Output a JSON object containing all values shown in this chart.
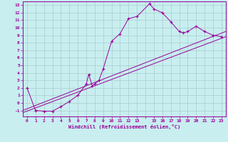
{
  "title": "",
  "xlabel": "Windchill (Refroidissement éolien,°C)",
  "ylabel": "",
  "bg_color": "#c8eef0",
  "line_color": "#990099",
  "grid_color": "#aacccc",
  "xlim": [
    -0.5,
    23.5
  ],
  "ylim": [
    -1.8,
    13.5
  ],
  "main_xy": [
    [
      0,
      2.0
    ],
    [
      1,
      -1.0
    ],
    [
      2,
      -1.1
    ],
    [
      3,
      -1.1
    ],
    [
      4,
      -0.5
    ],
    [
      5,
      0.2
    ],
    [
      6,
      1.0
    ],
    [
      7,
      2.5
    ],
    [
      7.3,
      3.8
    ],
    [
      7.7,
      2.3
    ],
    [
      8,
      2.5
    ],
    [
      8.5,
      3.0
    ],
    [
      9,
      4.5
    ],
    [
      10,
      8.2
    ],
    [
      11,
      9.2
    ],
    [
      12,
      11.2
    ],
    [
      13,
      11.5
    ],
    [
      14.5,
      13.2
    ],
    [
      15,
      12.5
    ],
    [
      16,
      12.0
    ],
    [
      17,
      10.8
    ],
    [
      18,
      9.5
    ],
    [
      18.5,
      9.3
    ],
    [
      19,
      9.5
    ],
    [
      20,
      10.2
    ],
    [
      21,
      9.5
    ],
    [
      22,
      9.0
    ],
    [
      23,
      8.8
    ]
  ],
  "diagonal_line": [
    [
      -0.5,
      -1.3
    ],
    [
      23.5,
      8.8
    ]
  ],
  "diagonal_line2": [
    [
      -0.5,
      -1.0
    ],
    [
      23.5,
      9.5
    ]
  ]
}
